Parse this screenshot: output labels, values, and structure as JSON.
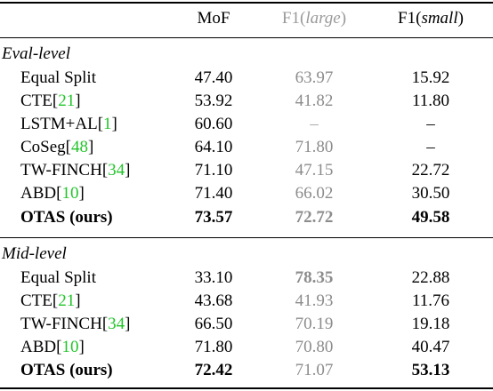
{
  "header": {
    "mof": "MoF",
    "f1_large_prefix": "F1(",
    "f1_large_word": "large",
    "f1_large_suffix": ")",
    "f1_small_prefix": "F1(",
    "f1_small_word": "small",
    "f1_small_suffix": ")"
  },
  "sections": [
    {
      "label": "Eval-level",
      "rows": [
        {
          "method": "Equal Split",
          "ref": "",
          "mof": "47.40",
          "f1_large": "63.97",
          "f1_small": "15.92"
        },
        {
          "method": "CTE[",
          "ref": "21",
          "ref_close": "]",
          "mof": "53.92",
          "f1_large": "41.82",
          "f1_small": "11.80"
        },
        {
          "method": "LSTM+AL[",
          "ref": "1",
          "ref_close": "]",
          "mof": "60.60",
          "f1_large": "–",
          "f1_small": "–"
        },
        {
          "method": "CoSeg[",
          "ref": "48",
          "ref_close": "]",
          "mof": "64.10",
          "f1_large": "71.80",
          "f1_small": "–"
        },
        {
          "method": "TW-FINCH[",
          "ref": "34",
          "ref_close": "]",
          "mof": "71.10",
          "f1_large": "47.15",
          "f1_small": "22.72"
        },
        {
          "method": "ABD[",
          "ref": "10",
          "ref_close": "]",
          "mof": "71.40",
          "f1_large": "66.02",
          "f1_small": "30.50"
        },
        {
          "method": "OTAS (ours)",
          "ref": "",
          "mof": "73.57",
          "f1_large": "72.72",
          "f1_small": "49.58"
        }
      ]
    },
    {
      "label": "Mid-level",
      "rows": [
        {
          "method": "Equal Split",
          "ref": "",
          "mof": "33.10",
          "f1_large": "78.35",
          "f1_small": "22.88"
        },
        {
          "method": "CTE[",
          "ref": "21",
          "ref_close": "]",
          "mof": "43.68",
          "f1_large": "41.93",
          "f1_small": "11.76"
        },
        {
          "method": "TW-FINCH[",
          "ref": "34",
          "ref_close": "]",
          "mof": "66.50",
          "f1_large": "70.19",
          "f1_small": "19.18"
        },
        {
          "method": "ABD[",
          "ref": "10",
          "ref_close": "]",
          "mof": "71.80",
          "f1_large": "70.80",
          "f1_small": "40.47"
        },
        {
          "method": "OTAS (ours)",
          "ref": "",
          "mof": "72.42",
          "f1_large": "71.07",
          "f1_small": "53.13"
        }
      ]
    }
  ]
}
